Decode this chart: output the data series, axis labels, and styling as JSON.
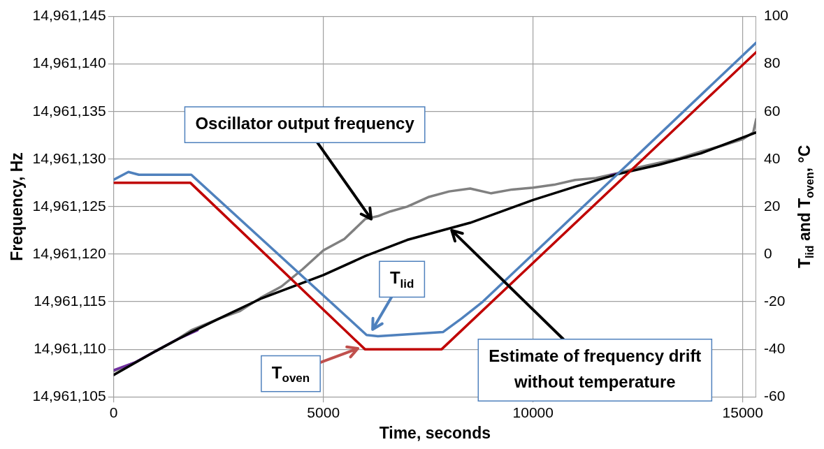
{
  "chart_data": {
    "type": "line",
    "xlabel": "Time, seconds",
    "ylabel": "Frequency, Hz",
    "y2label": "T$_{lid}$ and T$_{oven}$, °C",
    "xlim": [
      0,
      15320
    ],
    "xticks": [
      0,
      5000,
      10000,
      15000
    ],
    "ylim": [
      14961105,
      14961145
    ],
    "yticks": [
      {
        "value": 14961105,
        "label": "14,961,105"
      },
      {
        "value": 14961110,
        "label": "14,961,110"
      },
      {
        "value": 14961115,
        "label": "14,961,115"
      },
      {
        "value": 14961120,
        "label": "14,961,120"
      },
      {
        "value": 14961125,
        "label": "14,961,125"
      },
      {
        "value": 14961130,
        "label": "14,961,130"
      },
      {
        "value": 14961135,
        "label": "14,961,135"
      },
      {
        "value": 14961140,
        "label": "14,961,140"
      },
      {
        "value": 14961145,
        "label": "14,961,145"
      }
    ],
    "y2lim": [
      -60,
      100
    ],
    "y2ticks": [
      -60,
      -40,
      -20,
      0,
      20,
      40,
      60,
      80,
      100
    ],
    "grid": true,
    "legend": false,
    "series": [
      {
        "color": "#808080",
        "x": [
          0,
          500,
          1000,
          1500,
          1850,
          2500,
          3000,
          3500,
          4000,
          4500,
          5000,
          5500,
          6000,
          6300,
          6600,
          7000,
          7500,
          8000,
          8500,
          9000,
          9500,
          10000,
          10500,
          11000,
          11500,
          12000,
          12500,
          13000,
          13500,
          14000,
          14500,
          15000,
          15250,
          15320
        ],
        "values": [
          14961107.7,
          14961108.6,
          14961109.8,
          14961111.0,
          14961112.0,
          14961113.2,
          14961114.0,
          14961115.4,
          14961116.6,
          14961118.4,
          14961120.4,
          14961121.6,
          14961123.7,
          14961124.0,
          14961124.5,
          14961125.0,
          14961126.0,
          14961126.6,
          14961126.9,
          14961126.4,
          14961126.8,
          14961127.0,
          14961127.3,
          14961127.8,
          14961128.0,
          14961128.5,
          14961129.1,
          14961129.6,
          14961130.1,
          14961130.8,
          14961131.4,
          14961132.1,
          14961132.8,
          14961134.2
        ]
      },
      {
        "color": "#7030a0",
        "x": [
          0,
          500,
          1000,
          1500,
          2000,
          2100,
          11850,
          12050
        ],
        "values": [
          14961107.8,
          14961108.6,
          14961109.8,
          14961111.0,
          14961112.0,
          null,
          14961128.3,
          14961128.5
        ]
      },
      {
        "color": "#000000",
        "x": [
          0,
          1000,
          1850,
          2500,
          3500,
          5000,
          6000,
          7000,
          8500,
          10000,
          11000,
          12000,
          13000,
          14000,
          15320
        ],
        "values": [
          14961107.3,
          14961109.8,
          14961111.8,
          14961113.2,
          14961115.3,
          14961117.8,
          14961119.8,
          14961121.5,
          14961123.3,
          14961125.7,
          14961127.1,
          14961128.4,
          14961129.4,
          14961130.6,
          14961132.8
        ]
      },
      {
        "color": "#c00000",
        "axis": "y2",
        "x": [
          0,
          1830,
          5990,
          7820,
          10000,
          15320
        ],
        "values": [
          30,
          30,
          -40,
          -40,
          -3.7,
          85
        ]
      },
      {
        "color": "#4f81bd",
        "axis": "y2",
        "x": [
          0,
          350,
          600,
          1850,
          6030,
          6300,
          7850,
          8300,
          8800,
          10000,
          15320
        ],
        "values": [
          31.3,
          34.6,
          33.4,
          33.4,
          -34,
          -34.5,
          -32.8,
          -27,
          -20,
          0,
          89
        ]
      }
    ],
    "annotations": [
      {
        "text": "Oscillator output frequency",
        "x": 6140,
        "y": 14961123.7
      },
      {
        "text": "Estimate of frequency drift without temperature",
        "x": 8060,
        "y": 14961122.5
      },
      "T$_{lid}$",
      "T$_{oven}$"
    ]
  }
}
